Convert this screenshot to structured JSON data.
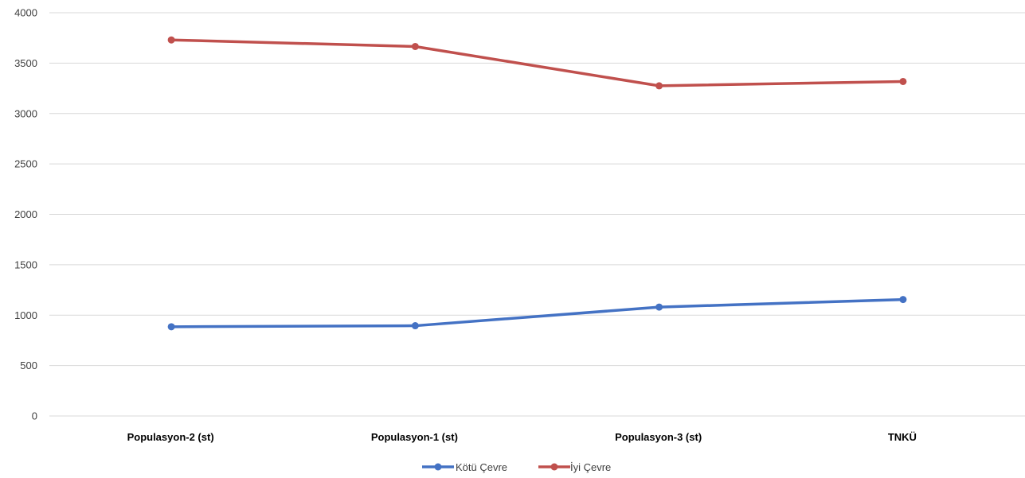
{
  "chart_data": {
    "type": "line",
    "categories": [
      "Populasyon-2 (st)",
      "Populasyon-1 (st)",
      "Populasyon-3 (st)",
      "TNKÜ"
    ],
    "series": [
      {
        "name": "Kötü Çevre",
        "color": "#4472c4",
        "values": [
          885,
          895,
          1080,
          1155
        ]
      },
      {
        "name": "İyi Çevre",
        "color": "#c0504d",
        "values": [
          3730,
          3665,
          3275,
          3318
        ]
      }
    ],
    "ylim": [
      0,
      4000
    ],
    "yticks": [
      "0",
      "500",
      "1000",
      "1500",
      "2000",
      "2500",
      "3000",
      "3500",
      "4000"
    ],
    "grid": true,
    "legend": "bottom-center"
  }
}
